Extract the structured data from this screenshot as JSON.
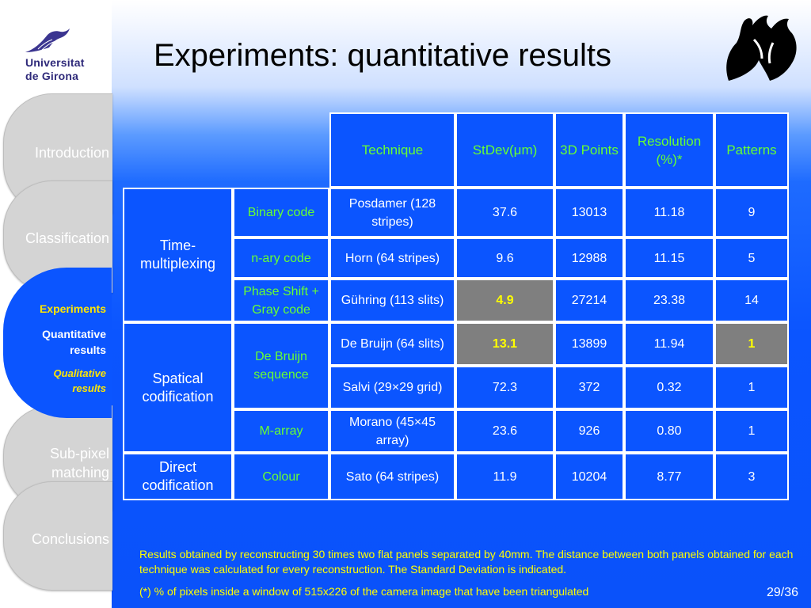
{
  "sidebar": {
    "logo": {
      "line1": "Universitat",
      "line2": "de Girona"
    },
    "tabs": [
      {
        "label": "Introduction"
      },
      {
        "label": "Classification"
      },
      {
        "label": "Sub-pixel matching"
      },
      {
        "label": "Conclusions"
      }
    ],
    "active": {
      "label": "Experiments",
      "current": "Quantitative results",
      "next": "Qualitative results"
    }
  },
  "title": "Experiments: quantitative results",
  "table": {
    "headers": {
      "technique": "Technique",
      "stdev": "StDev(μm)",
      "points": "3D Points",
      "resolution": "Resolution (%)*",
      "patterns": "Patterns"
    },
    "groups": {
      "time": "Time-multiplexing",
      "spatial": "Spatical codification",
      "direct": "Direct codification"
    },
    "subgroups": {
      "binary": "Binary code",
      "nary": "n-ary code",
      "phase": "Phase Shift + Gray code",
      "debruijn": "De Bruijn sequence",
      "marray": "M-array",
      "colour": "Colour"
    },
    "rows": [
      {
        "technique": "Posdamer (128 stripes)",
        "stdev": "37.6",
        "points": "13013",
        "resolution": "11.18",
        "patterns": "9"
      },
      {
        "technique": "Horn (64 stripes)",
        "stdev": "9.6",
        "points": "12988",
        "resolution": "11.15",
        "patterns": "5"
      },
      {
        "technique": "Gühring (113 slits)",
        "stdev": "4.9",
        "points": "27214",
        "resolution": "23.38",
        "patterns": "14"
      },
      {
        "technique": "De Bruijn (64 slits)",
        "stdev": "13.1",
        "points": "13899",
        "resolution": "11.94",
        "patterns": "1"
      },
      {
        "technique": "Salvi (29×29 grid)",
        "stdev": "72.3",
        "points": "372",
        "resolution": "0.32",
        "patterns": "1"
      },
      {
        "technique": "Morano (45×45 array)",
        "stdev": "23.6",
        "points": "926",
        "resolution": "0.80",
        "patterns": "1"
      },
      {
        "technique": "Sato (64 stripes)",
        "stdev": "11.9",
        "points": "10204",
        "resolution": "8.77",
        "patterns": "3"
      }
    ]
  },
  "notes": {
    "results": "Results obtained by reconstructing 30 times two flat panels separated by 40mm. The distance between both panels obtained for each technique was calculated for every reconstruction. The Standard Deviation is indicated.",
    "footnote": "(*) % of pixels inside a window of 515x226 of the camera image that have been triangulated"
  },
  "page": "29/36",
  "colors": {
    "accent": "#0b55ff",
    "header_text": "#66ff33",
    "highlight_bg": "#7f7f7f",
    "highlight_text": "#ffff00"
  }
}
